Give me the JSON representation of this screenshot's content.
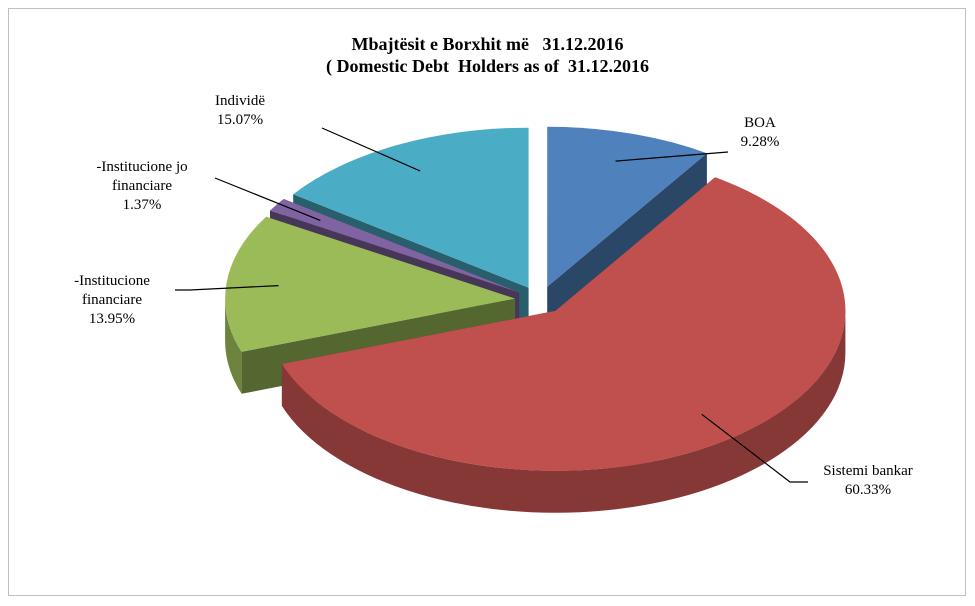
{
  "chart_data": {
    "type": "pie3d",
    "title": "Mbajtësit e Borxhit më   31.12.2016",
    "subtitle": "( Domestic Debt  Holders as of  31.12.2016",
    "categories": [
      "BOA",
      "Sistemi bankar",
      "-Institucione financiare",
      "-Institucione jo financiare",
      "Individë"
    ],
    "values": [
      9.28,
      60.33,
      13.95,
      1.37,
      15.07
    ],
    "value_labels": [
      "9.28%",
      "60.33%",
      "13.95%",
      "1.37%",
      "15.07%"
    ],
    "colors": [
      "#4f81bd",
      "#c0504d",
      "#9bbb59",
      "#8064a2",
      "#4bacc6"
    ]
  }
}
